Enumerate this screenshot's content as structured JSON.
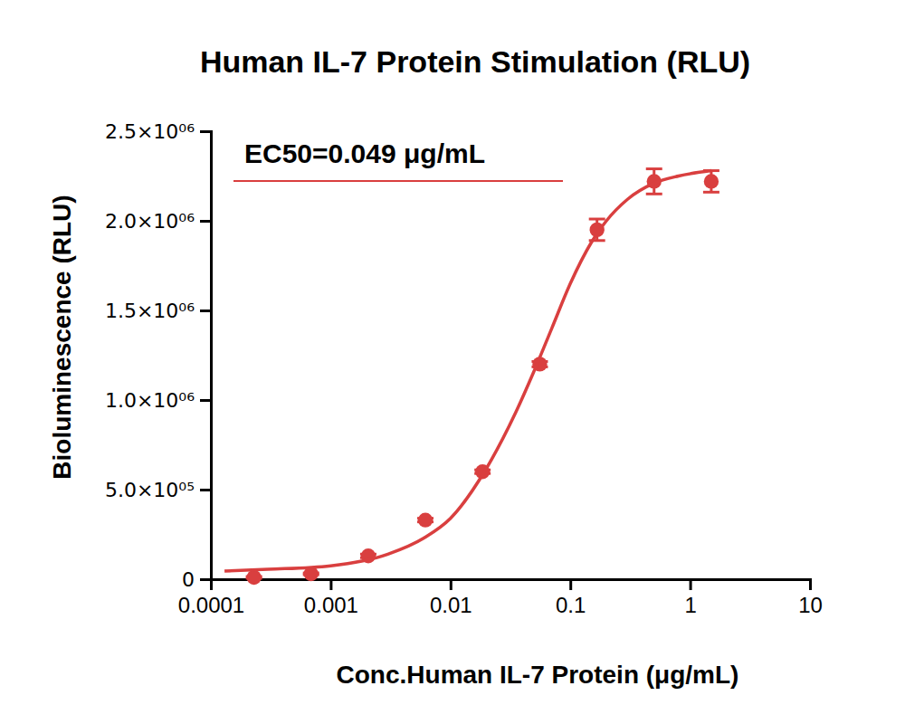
{
  "chart_data": {
    "type": "scatter",
    "title": "Human IL-7 Protein Stimulation (RLU)",
    "x_label": "Conc.Human IL-7 Protein (μg/mL)",
    "y_label": "Bioluminescence (RLU)",
    "annotations": [
      "EC50=0.049 μg/mL"
    ],
    "log": "x",
    "grid": false,
    "xlim": [
      0.0001,
      10
    ],
    "xticks": [
      0.0001,
      0.001,
      0.01,
      0.1,
      1,
      10
    ],
    "ylim": [
      0,
      2500000
    ],
    "yticks": [
      0,
      {
        "value": 500000,
        "label": "5.0×10⁰⁵"
      },
      {
        "value": 1000000,
        "label": "1.0×10⁰⁶"
      },
      {
        "value": 1500000,
        "label": "1.5×10⁰⁶"
      },
      {
        "value": 2000000,
        "label": "2.0×10⁰⁶"
      },
      {
        "value": 2500000,
        "label": "2.5×10⁰⁶"
      }
    ],
    "series": [
      {
        "type": "scatter",
        "color": "#d93f3f",
        "marker": "circle",
        "x": [
          0.000229,
          0.000686,
          0.00206,
          0.00617,
          0.0185,
          0.0556,
          0.167,
          0.5,
          1.5
        ],
        "values": [
          10000,
          30000,
          130000,
          330000,
          600000,
          1200000,
          1950000,
          2220000,
          2220000
        ],
        "errors": [
          5000,
          5000,
          10000,
          10000,
          10000,
          15000,
          60000,
          70000,
          60000
        ]
      },
      {
        "type": "line",
        "color": "#d93f3f",
        "line_style": "solid",
        "x": [
          0.00013,
          0.0003,
          0.001,
          0.003,
          0.006,
          0.01,
          0.02,
          0.035,
          0.049,
          0.07,
          0.1,
          0.15,
          0.2,
          0.3,
          0.5,
          0.8,
          1.5
        ],
        "values": [
          45000,
          55000,
          75000,
          140000,
          230000,
          340000,
          620000,
          930000,
          1150000,
          1400000,
          1650000,
          1880000,
          2000000,
          2120000,
          2210000,
          2250000,
          2280000
        ]
      }
    ]
  }
}
